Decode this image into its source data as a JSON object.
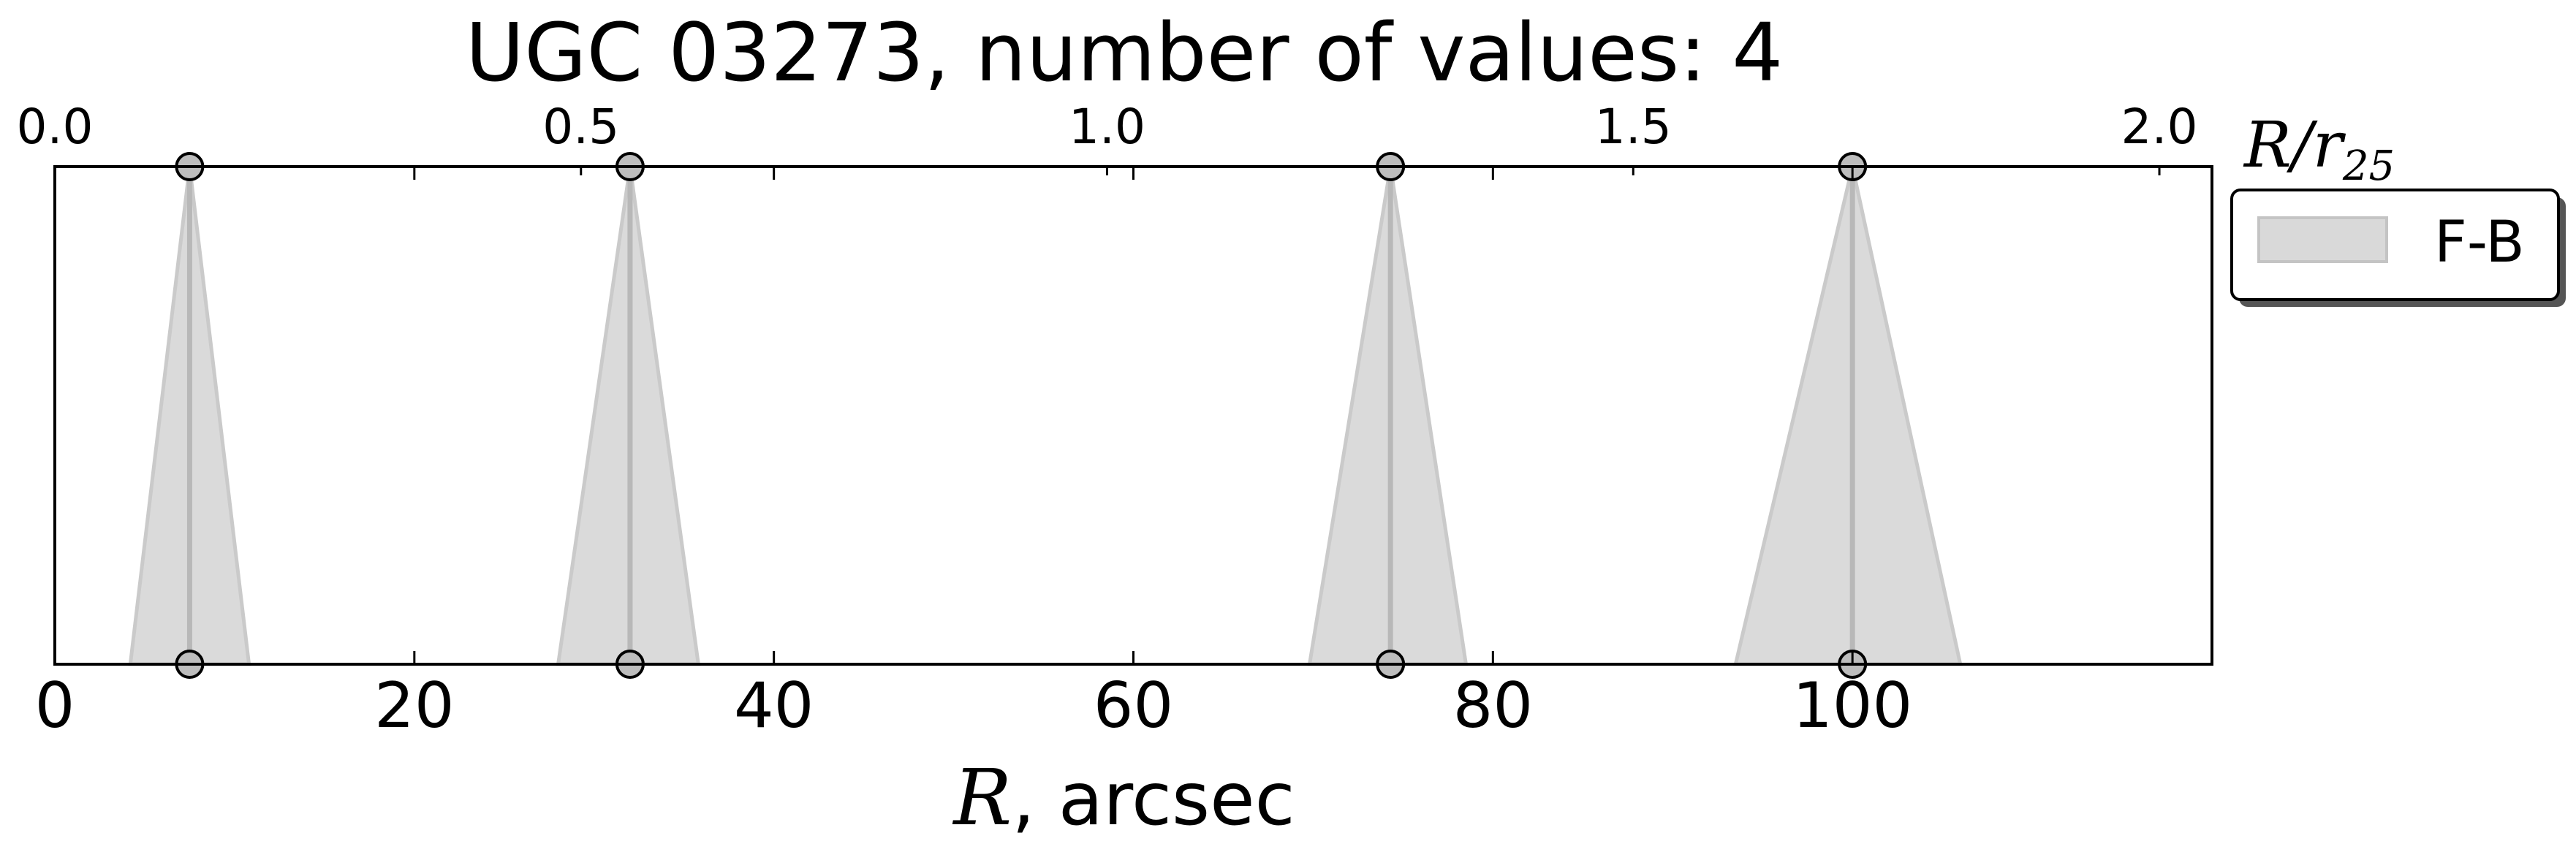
{
  "chart_data": {
    "type": "scatter",
    "title": "UGC 03273, number of values: 4",
    "xlabel_math": "R",
    "xlabel_rest": ", arcsec",
    "top_axis_label_math": "R/r",
    "top_axis_label_sub": "25",
    "xlim": [
      0,
      120
    ],
    "ylim": [
      0,
      1
    ],
    "x_ticks": [
      0,
      20,
      40,
      60,
      80,
      100
    ],
    "x_tick_labels": [
      "0",
      "20",
      "40",
      "60",
      "80",
      "100"
    ],
    "top_xlim": [
      0.0,
      2.05
    ],
    "top_ticks": [
      0.0,
      0.5,
      1.0,
      1.5,
      2.0
    ],
    "top_tick_labels": [
      "0.0",
      "0.5",
      "1.0",
      "1.5",
      "2.0"
    ],
    "grid": false,
    "legend_position": "outside-right-top",
    "series": [
      {
        "name": "F-B",
        "color": "#d3d3d3",
        "x": [
          7.5,
          32.0,
          74.3,
          100.0
        ],
        "x_low": [
          4.2,
          28.0,
          69.8,
          93.5
        ],
        "x_high": [
          10.8,
          35.8,
          78.5,
          106.0
        ]
      }
    ]
  }
}
